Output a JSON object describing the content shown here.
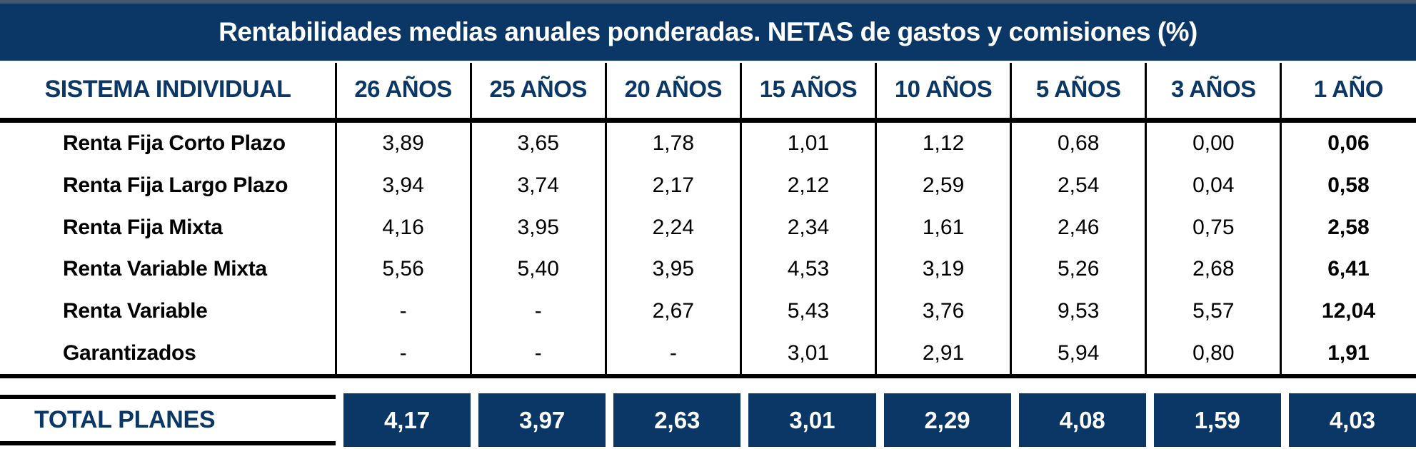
{
  "title": "Rentabilidades medias anuales ponderadas. NETAS de gastos y comisiones (%)",
  "colors": {
    "navy": "#0a3765",
    "line": "#000000",
    "background": "#ffffff",
    "title_text": "#ffffff"
  },
  "table": {
    "corner_label": "SISTEMA INDIVIDUAL",
    "columns": [
      "26 AÑOS",
      "25 AÑOS",
      "20 AÑOS",
      "15 AÑOS",
      "10 AÑOS",
      "5 AÑOS",
      "3 AÑOS",
      "1 AÑO"
    ],
    "rows": [
      {
        "label": "Renta Fija Corto Plazo",
        "values": [
          "3,89",
          "3,65",
          "1,78",
          "1,01",
          "1,12",
          "0,68",
          "0,00",
          "0,06"
        ]
      },
      {
        "label": "Renta Fija Largo Plazo",
        "values": [
          "3,94",
          "3,74",
          "2,17",
          "2,12",
          "2,59",
          "2,54",
          "0,04",
          "0,58"
        ]
      },
      {
        "label": "Renta Fija Mixta",
        "values": [
          "4,16",
          "3,95",
          "2,24",
          "2,34",
          "1,61",
          "2,46",
          "0,75",
          "2,58"
        ]
      },
      {
        "label": "Renta Variable Mixta",
        "values": [
          "5,56",
          "5,40",
          "3,95",
          "4,53",
          "3,19",
          "5,26",
          "2,68",
          "6,41"
        ]
      },
      {
        "label": "Renta Variable",
        "values": [
          "-",
          "-",
          "2,67",
          "5,43",
          "3,76",
          "9,53",
          "5,57",
          "12,04"
        ]
      },
      {
        "label": "Garantizados",
        "values": [
          "-",
          "-",
          "-",
          "3,01",
          "2,91",
          "5,94",
          "0,80",
          "1,91"
        ]
      }
    ],
    "total": {
      "label": "TOTAL PLANES",
      "values": [
        "4,17",
        "3,97",
        "2,63",
        "3,01",
        "2,29",
        "4,08",
        "1,59",
        "4,03"
      ]
    }
  },
  "chart_data": {
    "type": "table",
    "title": "Rentabilidades medias anuales ponderadas. NETAS de gastos y comisiones (%)",
    "row_header": "SISTEMA INDIVIDUAL",
    "columns": [
      "26 AÑOS",
      "25 AÑOS",
      "20 AÑOS",
      "15 AÑOS",
      "10 AÑOS",
      "5 AÑOS",
      "3 AÑOS",
      "1 AÑO"
    ],
    "unit": "percent, annualized net of fees and commissions",
    "decimal_separator": ",",
    "rows": [
      {
        "category": "Renta Fija Corto Plazo",
        "values": [
          3.89,
          3.65,
          1.78,
          1.01,
          1.12,
          0.68,
          0.0,
          0.06
        ]
      },
      {
        "category": "Renta Fija Largo Plazo",
        "values": [
          3.94,
          3.74,
          2.17,
          2.12,
          2.59,
          2.54,
          0.04,
          0.58
        ]
      },
      {
        "category": "Renta Fija Mixta",
        "values": [
          4.16,
          3.95,
          2.24,
          2.34,
          1.61,
          2.46,
          0.75,
          2.58
        ]
      },
      {
        "category": "Renta Variable Mixta",
        "values": [
          5.56,
          5.4,
          3.95,
          4.53,
          3.19,
          5.26,
          2.68,
          6.41
        ]
      },
      {
        "category": "Renta Variable",
        "values": [
          null,
          null,
          2.67,
          5.43,
          3.76,
          9.53,
          5.57,
          12.04
        ]
      },
      {
        "category": "Garantizados",
        "values": [
          null,
          null,
          null,
          3.01,
          2.91,
          5.94,
          0.8,
          1.91
        ]
      }
    ],
    "total": {
      "category": "TOTAL PLANES",
      "values": [
        4.17,
        3.97,
        2.63,
        3.01,
        2.29,
        4.08,
        1.59,
        4.03
      ]
    }
  }
}
